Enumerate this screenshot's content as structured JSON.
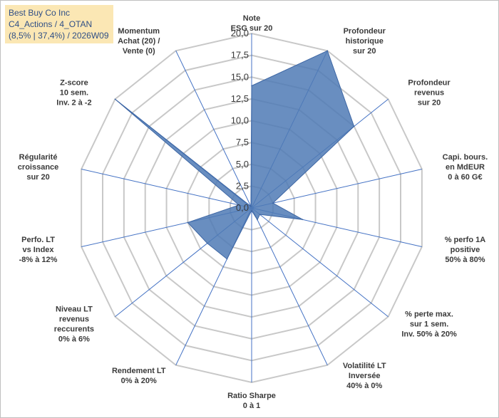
{
  "title_box": {
    "line1": "Best Buy Co Inc",
    "line2": "C4_Actions / 4_OTAN",
    "line3": "(8,5% | 37,4%) / 2026W09"
  },
  "colors": {
    "grid": "#c8c8c8",
    "spoke": "#4472c4",
    "fill": "#4f7ab5",
    "fill_stroke": "#3d66a4",
    "title_bg": "#fbe7b4",
    "title_text": "#2f4f86"
  },
  "chart_data": {
    "type": "radar",
    "rmin": 0,
    "rmax": 20,
    "ticks": [
      "0,0",
      "2,5",
      "5,0",
      "7,5",
      "10,0",
      "12,5",
      "15,0",
      "17,5",
      "20,0"
    ],
    "axes": [
      "Note\nESG sur 20",
      "Profondeur\nhistorique\nsur 20",
      "Profondeur\nrevenus\nsur 20",
      "Capi. bours.\nen MdEUR\n0 à 60 G€",
      "% perfo 1A\npositive\n50% à 80%",
      "% perte max.\nsur 1 sem.\nInv. 50% à 20%",
      "Volatilité LT\nInversée\n40% à 0%",
      "Ratio Sharpe\n0 à 1",
      "Rendement LT\n0% à 20%",
      "Niveau LT\nrevenus\nreccurents\n0% à 6%",
      "Perfo. LT\nvs Index\n-8% à 12%",
      "Régularité\ncroissance\nsur 20",
      "Z-score\n10 sem.\nInv. 2 à -2",
      "Momentum\nAchat (20) /\nVente (0)"
    ],
    "values": [
      14,
      20,
      15,
      2.5,
      6,
      1.2,
      1.5,
      0.3,
      6.5,
      6.5,
      7.5,
      1.5,
      20,
      0.2
    ],
    "grid": true,
    "legend": "none"
  }
}
